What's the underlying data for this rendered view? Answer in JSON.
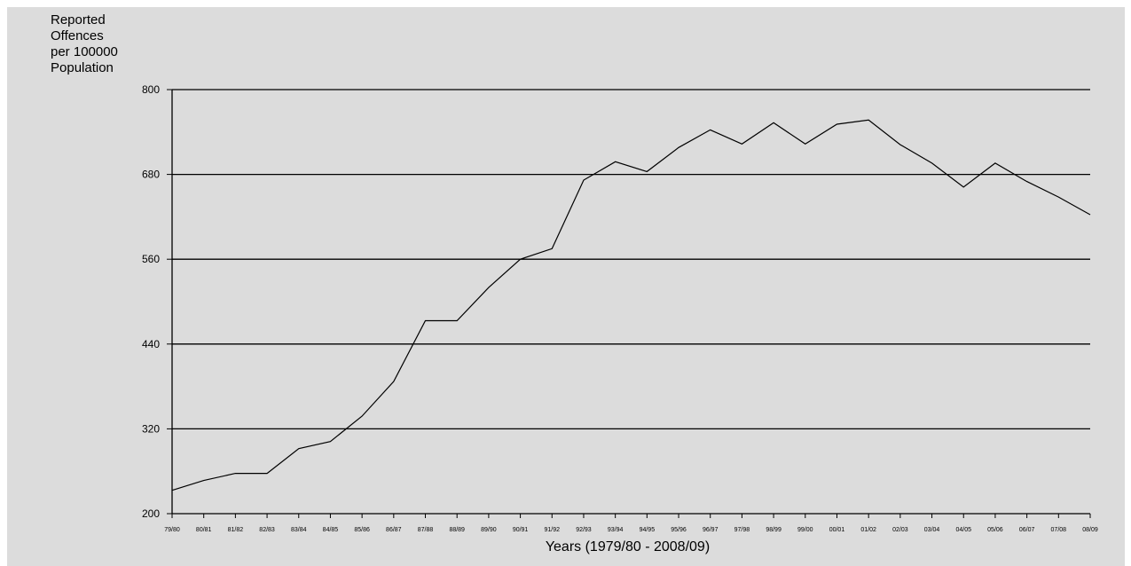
{
  "chart_data": {
    "type": "line",
    "title": "",
    "ylabel_lines": [
      "Reported",
      "Offences",
      "per 100000",
      "Population"
    ],
    "xlabel": "Years (1979/80 - 2008/09)",
    "ylim": [
      200,
      800
    ],
    "yticks": [
      200,
      320,
      440,
      560,
      680,
      800
    ],
    "grid": true,
    "legend": "none",
    "categories": [
      "79/80",
      "80/81",
      "81/82",
      "82/83",
      "83/84",
      "84/85",
      "85/86",
      "86/87",
      "87/88",
      "88/89",
      "89/90",
      "90/91",
      "91/92",
      "92/93",
      "93/94",
      "94/95",
      "95/96",
      "96/97",
      "97/98",
      "98/99",
      "99/00",
      "00/01",
      "01/02",
      "02/03",
      "03/04",
      "04/05",
      "05/06",
      "06/07",
      "07/08",
      "08/09"
    ],
    "series": [
      {
        "values": [
          233,
          247,
          257,
          257,
          292,
          302,
          338,
          387,
          473,
          473,
          520,
          560,
          575,
          672,
          698,
          684,
          718,
          743,
          723,
          753,
          723,
          751,
          757,
          722,
          696,
          662,
          696,
          670,
          648,
          623
        ],
        "color": "#000000"
      }
    ]
  }
}
